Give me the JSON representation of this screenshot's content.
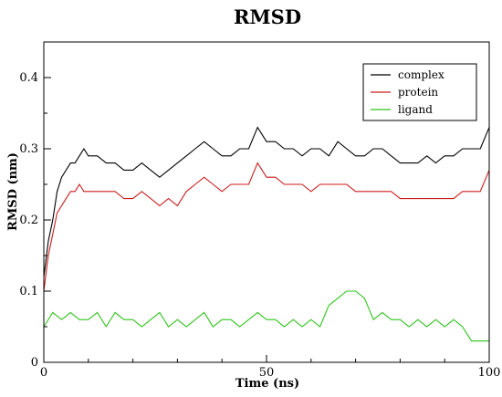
{
  "chart_data": {
    "type": "line",
    "title": "RMSD",
    "xlabel": "Time (ns)",
    "ylabel": "RMSD (nm)",
    "xlim": [
      0,
      100
    ],
    "ylim": [
      0,
      0.45
    ],
    "xticks": [
      0,
      50,
      100
    ],
    "yticks": [
      0,
      0.1,
      0.2,
      0.3,
      0.4
    ],
    "xtick_labels": [
      "0",
      "50",
      "100"
    ],
    "ytick_labels": [
      "0",
      "0.1",
      "0.2",
      "0.3",
      "0.4"
    ],
    "grid": false,
    "legend_position": "top-right",
    "series": [
      {
        "name": "complex",
        "color": "#000000",
        "x": [
          0,
          1,
          2,
          3,
          4,
          5,
          6,
          7,
          8,
          9,
          10,
          12,
          14,
          16,
          18,
          20,
          22,
          24,
          26,
          28,
          30,
          32,
          34,
          36,
          38,
          40,
          42,
          44,
          46,
          48,
          50,
          52,
          54,
          56,
          58,
          60,
          62,
          64,
          66,
          68,
          70,
          72,
          74,
          76,
          78,
          80,
          82,
          84,
          86,
          88,
          90,
          92,
          94,
          96,
          98,
          100
        ],
        "y": [
          0.12,
          0.17,
          0.2,
          0.24,
          0.26,
          0.27,
          0.28,
          0.28,
          0.29,
          0.3,
          0.29,
          0.29,
          0.28,
          0.28,
          0.27,
          0.27,
          0.28,
          0.27,
          0.26,
          0.27,
          0.28,
          0.29,
          0.3,
          0.31,
          0.3,
          0.29,
          0.29,
          0.3,
          0.3,
          0.33,
          0.31,
          0.31,
          0.3,
          0.3,
          0.29,
          0.3,
          0.3,
          0.29,
          0.31,
          0.3,
          0.29,
          0.29,
          0.3,
          0.3,
          0.29,
          0.28,
          0.28,
          0.28,
          0.29,
          0.28,
          0.29,
          0.29,
          0.3,
          0.3,
          0.3,
          0.33
        ]
      },
      {
        "name": "protein",
        "color": "#cc1d1d",
        "x": [
          0,
          1,
          2,
          3,
          4,
          5,
          6,
          7,
          8,
          9,
          10,
          12,
          14,
          16,
          18,
          20,
          22,
          24,
          26,
          28,
          30,
          32,
          34,
          36,
          38,
          40,
          42,
          44,
          46,
          48,
          50,
          52,
          54,
          56,
          58,
          60,
          62,
          64,
          66,
          68,
          70,
          72,
          74,
          76,
          78,
          80,
          82,
          84,
          86,
          88,
          90,
          92,
          94,
          96,
          98,
          100
        ],
        "y": [
          0.1,
          0.15,
          0.18,
          0.21,
          0.22,
          0.23,
          0.24,
          0.24,
          0.25,
          0.24,
          0.24,
          0.24,
          0.24,
          0.24,
          0.23,
          0.23,
          0.24,
          0.23,
          0.22,
          0.23,
          0.22,
          0.24,
          0.25,
          0.26,
          0.25,
          0.24,
          0.25,
          0.25,
          0.25,
          0.28,
          0.26,
          0.26,
          0.25,
          0.25,
          0.25,
          0.24,
          0.25,
          0.25,
          0.25,
          0.25,
          0.24,
          0.24,
          0.24,
          0.24,
          0.24,
          0.23,
          0.23,
          0.23,
          0.23,
          0.23,
          0.23,
          0.23,
          0.24,
          0.24,
          0.24,
          0.27
        ]
      },
      {
        "name": "ligand",
        "color": "#2ec41a",
        "x": [
          0,
          2,
          4,
          6,
          8,
          10,
          12,
          14,
          16,
          18,
          20,
          22,
          24,
          26,
          28,
          30,
          32,
          34,
          36,
          38,
          40,
          42,
          44,
          46,
          48,
          50,
          52,
          54,
          56,
          58,
          60,
          62,
          64,
          66,
          68,
          70,
          72,
          74,
          76,
          78,
          80,
          82,
          84,
          86,
          88,
          90,
          92,
          94,
          96,
          98,
          100
        ],
        "y": [
          0.05,
          0.07,
          0.06,
          0.07,
          0.06,
          0.06,
          0.07,
          0.05,
          0.07,
          0.06,
          0.06,
          0.05,
          0.06,
          0.07,
          0.05,
          0.06,
          0.05,
          0.06,
          0.07,
          0.05,
          0.06,
          0.06,
          0.05,
          0.06,
          0.07,
          0.06,
          0.06,
          0.05,
          0.06,
          0.05,
          0.06,
          0.05,
          0.08,
          0.09,
          0.1,
          0.1,
          0.09,
          0.06,
          0.07,
          0.06,
          0.06,
          0.05,
          0.06,
          0.05,
          0.06,
          0.05,
          0.06,
          0.05,
          0.03,
          0.03,
          0.03
        ]
      }
    ]
  }
}
